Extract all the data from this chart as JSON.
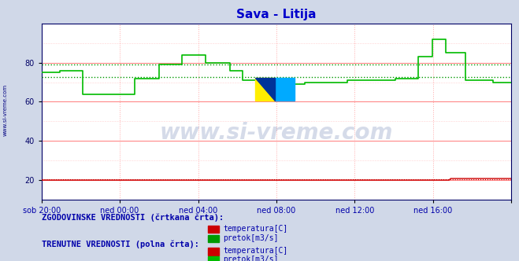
{
  "title": "Sava - Litija",
  "title_color": "#0000cc",
  "bg_color": "#d0d8e8",
  "plot_bg_color": "#ffffff",
  "grid_color_h": "#ff6666",
  "grid_color_v": "#ffaaaa",
  "ylim": [
    10,
    100
  ],
  "yticks": [
    20,
    40,
    60,
    80
  ],
  "xlabel_color": "#0000aa",
  "xtick_labels": [
    "sob 20:00",
    "ned 00:00",
    "ned 04:00",
    "ned 08:00",
    "ned 12:00",
    "ned 16:00"
  ],
  "watermark_text": "www.si-vreme.com",
  "watermark_color": "#1a3a8a",
  "watermark_alpha": 0.18,
  "sidebar_text": "www.si-vreme.com",
  "sidebar_color": "#000080",
  "pretok_solid_color": "#00bb00",
  "pretok_dashed_color": "#009900",
  "temp_solid_color": "#cc0000",
  "temp_dashed_color": "#cc0000",
  "legend_text_color": "#0000aa",
  "legend_title1": "ZGODOVINSKE VREDNOSTI (črtkana črta):",
  "legend_title2": "TRENUTNE VREDNOSTI (polna črta):",
  "legend_label_temp": "temperatura[C]",
  "legend_label_pretok": "pretok[m3/s]",
  "n_points": 288,
  "dashed_pretok_upper": 79.0,
  "dashed_pretok_lower": 72.5,
  "temp_level": 20.0,
  "logo_yellow": "#ffee00",
  "logo_blue": "#00aaff",
  "logo_dark": "#003399"
}
